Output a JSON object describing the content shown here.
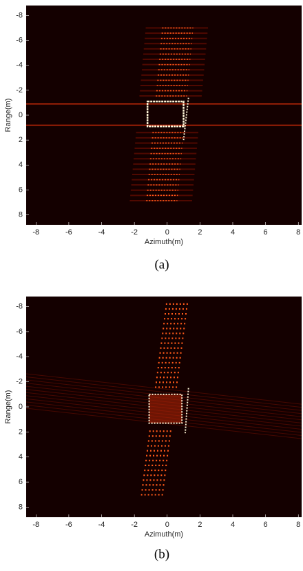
{
  "chart_data": [
    {
      "type": "image",
      "caption": "(a)",
      "xlabel": "Azimuth(m)",
      "ylabel": "Range(m)",
      "xlim": [
        -8.6,
        8.2
      ],
      "ylim": [
        -8.8,
        8.8
      ],
      "y_reversed": true,
      "xticks": [
        -8,
        -6,
        -4,
        -2,
        0,
        2,
        4,
        6,
        8
      ],
      "yticks": [
        -8,
        -6,
        -4,
        -2,
        0,
        2,
        4,
        6,
        8
      ],
      "background": "#140000"
    },
    {
      "type": "image",
      "caption": "(b)",
      "xlabel": "Azimuth(m)",
      "ylabel": "Range(m)",
      "xlim": [
        -8.6,
        8.2
      ],
      "ylim": [
        -8.8,
        8.8
      ],
      "y_reversed": true,
      "xticks": [
        -8,
        -6,
        -4,
        -2,
        0,
        2,
        4,
        6,
        8
      ],
      "yticks": [
        -8,
        -6,
        -4,
        -2,
        0,
        2,
        4,
        6,
        8
      ],
      "background": "#140000"
    }
  ]
}
